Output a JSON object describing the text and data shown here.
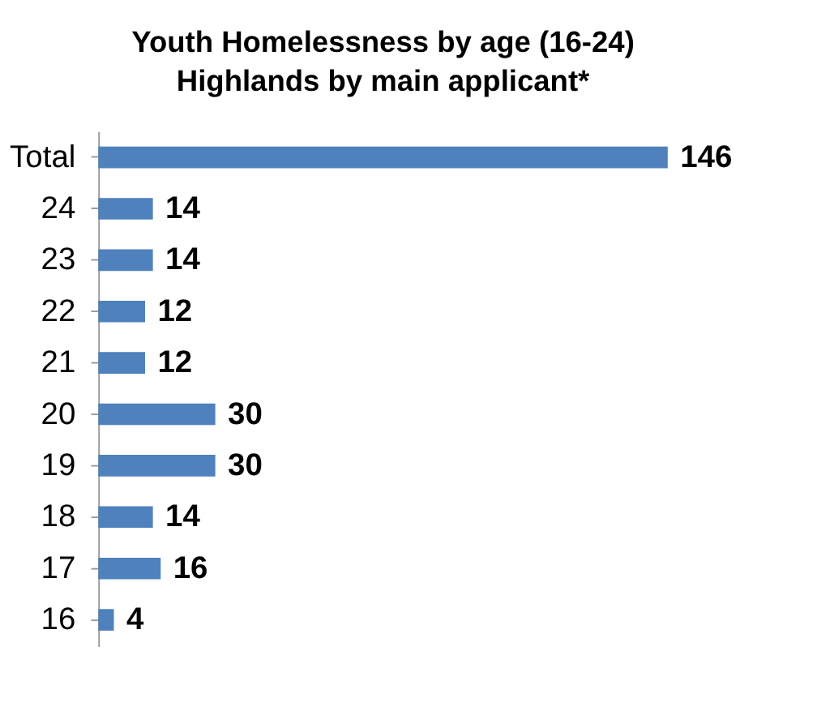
{
  "chart_data": {
    "type": "bar",
    "orientation": "horizontal",
    "title": "Youth Homelessness by age (16-24)",
    "subtitle": "Highlands by main applicant*",
    "categories": [
      "Total",
      "24",
      "23",
      "22",
      "21",
      "20",
      "19",
      "18",
      "17",
      "16"
    ],
    "values": [
      146,
      14,
      14,
      12,
      12,
      30,
      30,
      14,
      16,
      4
    ],
    "color": "#4f81bd",
    "data_labels": true,
    "tick_labels": "y",
    "grid": false
  }
}
